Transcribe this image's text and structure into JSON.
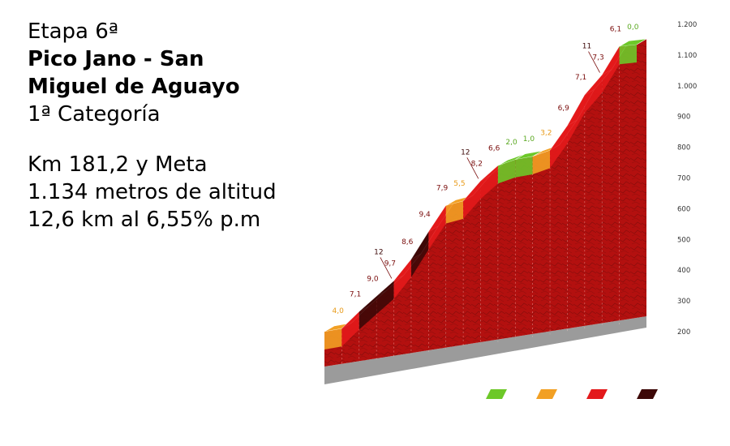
{
  "info": {
    "stage": "Etapa 6ª",
    "title_line1": "Pico Jano - San",
    "title_line2": "Miguel de Aguayo",
    "category": "1ª Categoría",
    "km": "Km 181,2 y Meta",
    "altitude": "1.134 metros de altitud",
    "length": "12,6 km al 6,55% p.m"
  },
  "colors": {
    "green": "#6dc829",
    "orange": "#f2a024",
    "red": "#e3191b",
    "darkred": "#3d0807",
    "wall": "#b3100f",
    "grey": "#9b9b9b"
  },
  "chart_data": {
    "type": "area",
    "title": "",
    "xlabel": "",
    "ylabel": "",
    "ylim": [
      200,
      1200
    ],
    "y_ticks": [
      200,
      300,
      400,
      500,
      600,
      700,
      800,
      900,
      "1.000",
      "1.100",
      "1.200"
    ],
    "segments": [
      {
        "gradient": 4.0,
        "label": "4,0",
        "color_class": "orange",
        "start_alt": 200,
        "end_alt": 210
      },
      {
        "gradient": 7.1,
        "label": "7,1",
        "color_class": "red",
        "start_alt": 210,
        "end_alt": 265
      },
      {
        "gradient": 9.0,
        "label": "9,0",
        "color_class": "darkred",
        "start_alt": 265,
        "end_alt": 315
      },
      {
        "gradient": 9.7,
        "label": "9,7",
        "color_class": "darkred",
        "start_alt": 315,
        "end_alt": 365,
        "max": 12
      },
      {
        "gradient": 8.6,
        "label": "8,6",
        "color_class": "red",
        "start_alt": 365,
        "end_alt": 435
      },
      {
        "gradient": 9.4,
        "label": "9,4",
        "color_class": "darkred",
        "start_alt": 435,
        "end_alt": 525
      },
      {
        "gradient": 7.9,
        "label": "7,9",
        "color_class": "red",
        "start_alt": 525,
        "end_alt": 610
      },
      {
        "gradient": 5.5,
        "label": "5,5",
        "color_class": "orange",
        "start_alt": 610,
        "end_alt": 625
      },
      {
        "gradient": 8.2,
        "label": "8,2",
        "color_class": "red",
        "start_alt": 625,
        "end_alt": 690,
        "max": 12
      },
      {
        "gradient": 6.6,
        "label": "6,6",
        "color_class": "red",
        "start_alt": 690,
        "end_alt": 740
      },
      {
        "gradient": 2.0,
        "label": "2,0",
        "color_class": "green",
        "start_alt": 740,
        "end_alt": 760
      },
      {
        "gradient": 1.0,
        "label": "1,0",
        "color_class": "green",
        "start_alt": 760,
        "end_alt": 770
      },
      {
        "gradient": 3.2,
        "label": "3,2",
        "color_class": "orange",
        "start_alt": 770,
        "end_alt": 790
      },
      {
        "gradient": 6.9,
        "label": "6,9",
        "color_class": "red",
        "start_alt": 790,
        "end_alt": 870
      },
      {
        "gradient": 7.1,
        "label": "7,1",
        "color_class": "red",
        "start_alt": 870,
        "end_alt": 970
      },
      {
        "gradient": 7.3,
        "label": "7,3",
        "color_class": "red",
        "start_alt": 970,
        "end_alt": 1035,
        "max": 11
      },
      {
        "gradient": 6.1,
        "label": "6,1",
        "color_class": "red",
        "start_alt": 1035,
        "end_alt": 1128
      },
      {
        "gradient": 0.0,
        "label": "0,0",
        "color_class": "green",
        "start_alt": 1128,
        "end_alt": 1134
      }
    ],
    "legend": [
      {
        "color_class": "green"
      },
      {
        "color_class": "orange"
      },
      {
        "color_class": "red"
      },
      {
        "color_class": "darkred"
      }
    ]
  }
}
